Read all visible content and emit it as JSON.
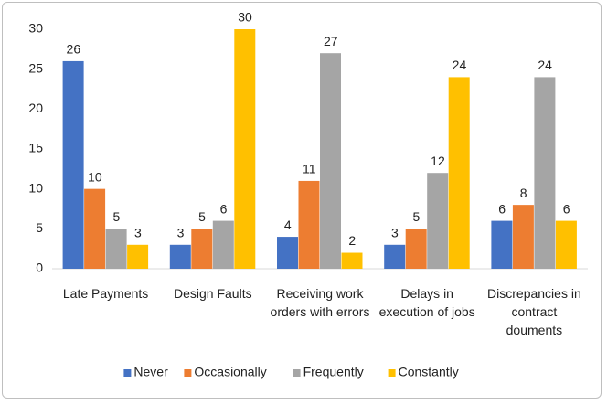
{
  "chart_data": {
    "type": "bar",
    "categories": [
      "Late Payments",
      "Design Faults",
      "Receiving work orders with errors",
      "Delays in execution of jobs",
      "Discrepancies in contract douments"
    ],
    "series": [
      {
        "name": "Never",
        "color": "#4472c4",
        "values": [
          26,
          3,
          4,
          3,
          6
        ]
      },
      {
        "name": "Occasionally",
        "color": "#ed7d31",
        "values": [
          10,
          5,
          11,
          5,
          8
        ]
      },
      {
        "name": "Frequently",
        "color": "#a5a5a5",
        "values": [
          5,
          6,
          27,
          12,
          24
        ]
      },
      {
        "name": "Constantly",
        "color": "#ffc000",
        "values": [
          3,
          30,
          2,
          24,
          6
        ]
      }
    ],
    "ylim": [
      0,
      30
    ],
    "yticks": [
      0,
      5,
      10,
      15,
      20,
      25,
      30
    ],
    "grid": false,
    "legend": "bottom"
  }
}
